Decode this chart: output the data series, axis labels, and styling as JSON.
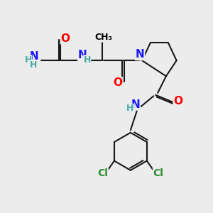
{
  "bg_color": "#ececec",
  "atom_colors": {
    "C": "#000000",
    "N": "#1a1aff",
    "O": "#ff0000",
    "Cl": "#2e8b2e",
    "H": "#4aabab"
  },
  "bond_color": "#1a1a1a",
  "bond_width": 1.5,
  "font_size_atom": 11,
  "font_size_H": 9,
  "font_size_Cl": 10
}
